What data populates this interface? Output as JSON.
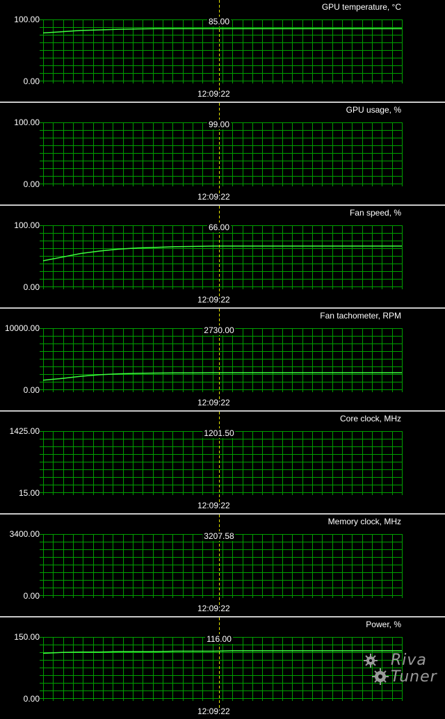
{
  "cursor_time": "12:09:22",
  "colors": {
    "background": "#000000",
    "grid": "#00a000",
    "trace": "#40ff40",
    "cursor": "#e0e000",
    "separator": "#c8c8c8"
  },
  "panels": [
    {
      "title": "GPU temperature, °C",
      "ymax": "100.00",
      "ymin": "0.00",
      "ymax_val": 100,
      "ymin_val": 0,
      "current": "85.00",
      "time": "12:09:22",
      "series": [
        78,
        80,
        82,
        83,
        84,
        84.5,
        85,
        85,
        85,
        85,
        85,
        85,
        85,
        85,
        85,
        85,
        85,
        85,
        85,
        85
      ]
    },
    {
      "title": "GPU usage, %",
      "ymax": "100.00",
      "ymin": "0.00",
      "ymax_val": 100,
      "ymin_val": 0,
      "current": "99.00",
      "time": "12:09:22",
      "series": []
    },
    {
      "title": "Fan speed, %",
      "ymax": "100.00",
      "ymin": "0.00",
      "ymax_val": 100,
      "ymin_val": 0,
      "current": "66.00",
      "time": "12:09:22",
      "series": [
        42,
        48,
        54,
        58,
        61,
        63,
        64,
        65,
        65.5,
        66,
        66,
        66,
        66,
        66,
        66,
        66,
        66,
        66,
        66,
        66
      ]
    },
    {
      "title": "Fan tachometer, RPM",
      "ymax": "10000.00",
      "ymin": "0.00",
      "ymax_val": 10000,
      "ymin_val": 0,
      "current": "2730.00",
      "time": "12:09:22",
      "series": [
        1500,
        1800,
        2150,
        2400,
        2550,
        2620,
        2670,
        2700,
        2710,
        2730,
        2730,
        2730,
        2730,
        2730,
        2730,
        2730,
        2730,
        2730,
        2730,
        2730
      ]
    },
    {
      "title": "Core clock, MHz",
      "ymax": "1425.00",
      "ymin": "15.00",
      "ymax_val": 1425,
      "ymin_val": 15,
      "current": "1201.50",
      "time": "12:09:22",
      "series": []
    },
    {
      "title": "Memory clock, MHz",
      "ymax": "3400.00",
      "ymin": "0.00",
      "ymax_val": 3400,
      "ymin_val": 0,
      "current": "3207.58",
      "time": "12:09:22",
      "series": []
    },
    {
      "title": "Power, %",
      "ymax": "150.00",
      "ymin": "0.00",
      "ymax_val": 150,
      "ymin_val": 0,
      "current": "116.00",
      "time": "12:09:22",
      "series": [
        110,
        112,
        113,
        113,
        114,
        114,
        114,
        115,
        115,
        115,
        116,
        116,
        116,
        116,
        116,
        116,
        116,
        116,
        116,
        116
      ]
    }
  ],
  "logo": {
    "line1": "Riva",
    "line2": "Tuner"
  }
}
